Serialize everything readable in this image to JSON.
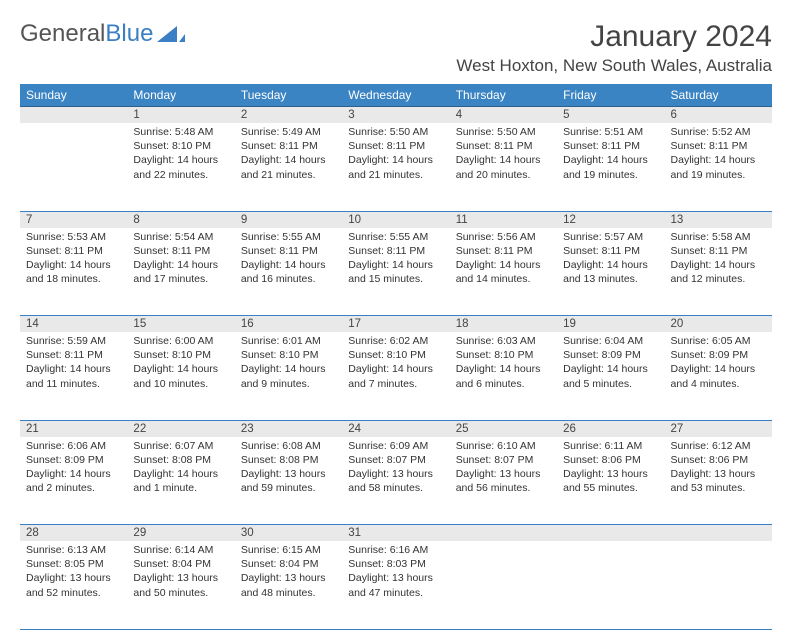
{
  "brand": {
    "part1": "General",
    "part2": "Blue"
  },
  "title": "January 2024",
  "location": "West Hoxton, New South Wales, Australia",
  "colors": {
    "header_bg": "#3b84c4",
    "header_text": "#ffffff",
    "border": "#3b7fc4",
    "daynum_bg": "#e9e9e9",
    "text": "#333333"
  },
  "weekdays": [
    "Sunday",
    "Monday",
    "Tuesday",
    "Wednesday",
    "Thursday",
    "Friday",
    "Saturday"
  ],
  "weeks": [
    [
      {},
      {
        "n": "1",
        "sr": "Sunrise: 5:48 AM",
        "ss": "Sunset: 8:10 PM",
        "dl": "Daylight: 14 hours and 22 minutes."
      },
      {
        "n": "2",
        "sr": "Sunrise: 5:49 AM",
        "ss": "Sunset: 8:11 PM",
        "dl": "Daylight: 14 hours and 21 minutes."
      },
      {
        "n": "3",
        "sr": "Sunrise: 5:50 AM",
        "ss": "Sunset: 8:11 PM",
        "dl": "Daylight: 14 hours and 21 minutes."
      },
      {
        "n": "4",
        "sr": "Sunrise: 5:50 AM",
        "ss": "Sunset: 8:11 PM",
        "dl": "Daylight: 14 hours and 20 minutes."
      },
      {
        "n": "5",
        "sr": "Sunrise: 5:51 AM",
        "ss": "Sunset: 8:11 PM",
        "dl": "Daylight: 14 hours and 19 minutes."
      },
      {
        "n": "6",
        "sr": "Sunrise: 5:52 AM",
        "ss": "Sunset: 8:11 PM",
        "dl": "Daylight: 14 hours and 19 minutes."
      }
    ],
    [
      {
        "n": "7",
        "sr": "Sunrise: 5:53 AM",
        "ss": "Sunset: 8:11 PM",
        "dl": "Daylight: 14 hours and 18 minutes."
      },
      {
        "n": "8",
        "sr": "Sunrise: 5:54 AM",
        "ss": "Sunset: 8:11 PM",
        "dl": "Daylight: 14 hours and 17 minutes."
      },
      {
        "n": "9",
        "sr": "Sunrise: 5:55 AM",
        "ss": "Sunset: 8:11 PM",
        "dl": "Daylight: 14 hours and 16 minutes."
      },
      {
        "n": "10",
        "sr": "Sunrise: 5:55 AM",
        "ss": "Sunset: 8:11 PM",
        "dl": "Daylight: 14 hours and 15 minutes."
      },
      {
        "n": "11",
        "sr": "Sunrise: 5:56 AM",
        "ss": "Sunset: 8:11 PM",
        "dl": "Daylight: 14 hours and 14 minutes."
      },
      {
        "n": "12",
        "sr": "Sunrise: 5:57 AM",
        "ss": "Sunset: 8:11 PM",
        "dl": "Daylight: 14 hours and 13 minutes."
      },
      {
        "n": "13",
        "sr": "Sunrise: 5:58 AM",
        "ss": "Sunset: 8:11 PM",
        "dl": "Daylight: 14 hours and 12 minutes."
      }
    ],
    [
      {
        "n": "14",
        "sr": "Sunrise: 5:59 AM",
        "ss": "Sunset: 8:11 PM",
        "dl": "Daylight: 14 hours and 11 minutes."
      },
      {
        "n": "15",
        "sr": "Sunrise: 6:00 AM",
        "ss": "Sunset: 8:10 PM",
        "dl": "Daylight: 14 hours and 10 minutes."
      },
      {
        "n": "16",
        "sr": "Sunrise: 6:01 AM",
        "ss": "Sunset: 8:10 PM",
        "dl": "Daylight: 14 hours and 9 minutes."
      },
      {
        "n": "17",
        "sr": "Sunrise: 6:02 AM",
        "ss": "Sunset: 8:10 PM",
        "dl": "Daylight: 14 hours and 7 minutes."
      },
      {
        "n": "18",
        "sr": "Sunrise: 6:03 AM",
        "ss": "Sunset: 8:10 PM",
        "dl": "Daylight: 14 hours and 6 minutes."
      },
      {
        "n": "19",
        "sr": "Sunrise: 6:04 AM",
        "ss": "Sunset: 8:09 PM",
        "dl": "Daylight: 14 hours and 5 minutes."
      },
      {
        "n": "20",
        "sr": "Sunrise: 6:05 AM",
        "ss": "Sunset: 8:09 PM",
        "dl": "Daylight: 14 hours and 4 minutes."
      }
    ],
    [
      {
        "n": "21",
        "sr": "Sunrise: 6:06 AM",
        "ss": "Sunset: 8:09 PM",
        "dl": "Daylight: 14 hours and 2 minutes."
      },
      {
        "n": "22",
        "sr": "Sunrise: 6:07 AM",
        "ss": "Sunset: 8:08 PM",
        "dl": "Daylight: 14 hours and 1 minute."
      },
      {
        "n": "23",
        "sr": "Sunrise: 6:08 AM",
        "ss": "Sunset: 8:08 PM",
        "dl": "Daylight: 13 hours and 59 minutes."
      },
      {
        "n": "24",
        "sr": "Sunrise: 6:09 AM",
        "ss": "Sunset: 8:07 PM",
        "dl": "Daylight: 13 hours and 58 minutes."
      },
      {
        "n": "25",
        "sr": "Sunrise: 6:10 AM",
        "ss": "Sunset: 8:07 PM",
        "dl": "Daylight: 13 hours and 56 minutes."
      },
      {
        "n": "26",
        "sr": "Sunrise: 6:11 AM",
        "ss": "Sunset: 8:06 PM",
        "dl": "Daylight: 13 hours and 55 minutes."
      },
      {
        "n": "27",
        "sr": "Sunrise: 6:12 AM",
        "ss": "Sunset: 8:06 PM",
        "dl": "Daylight: 13 hours and 53 minutes."
      }
    ],
    [
      {
        "n": "28",
        "sr": "Sunrise: 6:13 AM",
        "ss": "Sunset: 8:05 PM",
        "dl": "Daylight: 13 hours and 52 minutes."
      },
      {
        "n": "29",
        "sr": "Sunrise: 6:14 AM",
        "ss": "Sunset: 8:04 PM",
        "dl": "Daylight: 13 hours and 50 minutes."
      },
      {
        "n": "30",
        "sr": "Sunrise: 6:15 AM",
        "ss": "Sunset: 8:04 PM",
        "dl": "Daylight: 13 hours and 48 minutes."
      },
      {
        "n": "31",
        "sr": "Sunrise: 6:16 AM",
        "ss": "Sunset: 8:03 PM",
        "dl": "Daylight: 13 hours and 47 minutes."
      },
      {},
      {},
      {}
    ]
  ]
}
